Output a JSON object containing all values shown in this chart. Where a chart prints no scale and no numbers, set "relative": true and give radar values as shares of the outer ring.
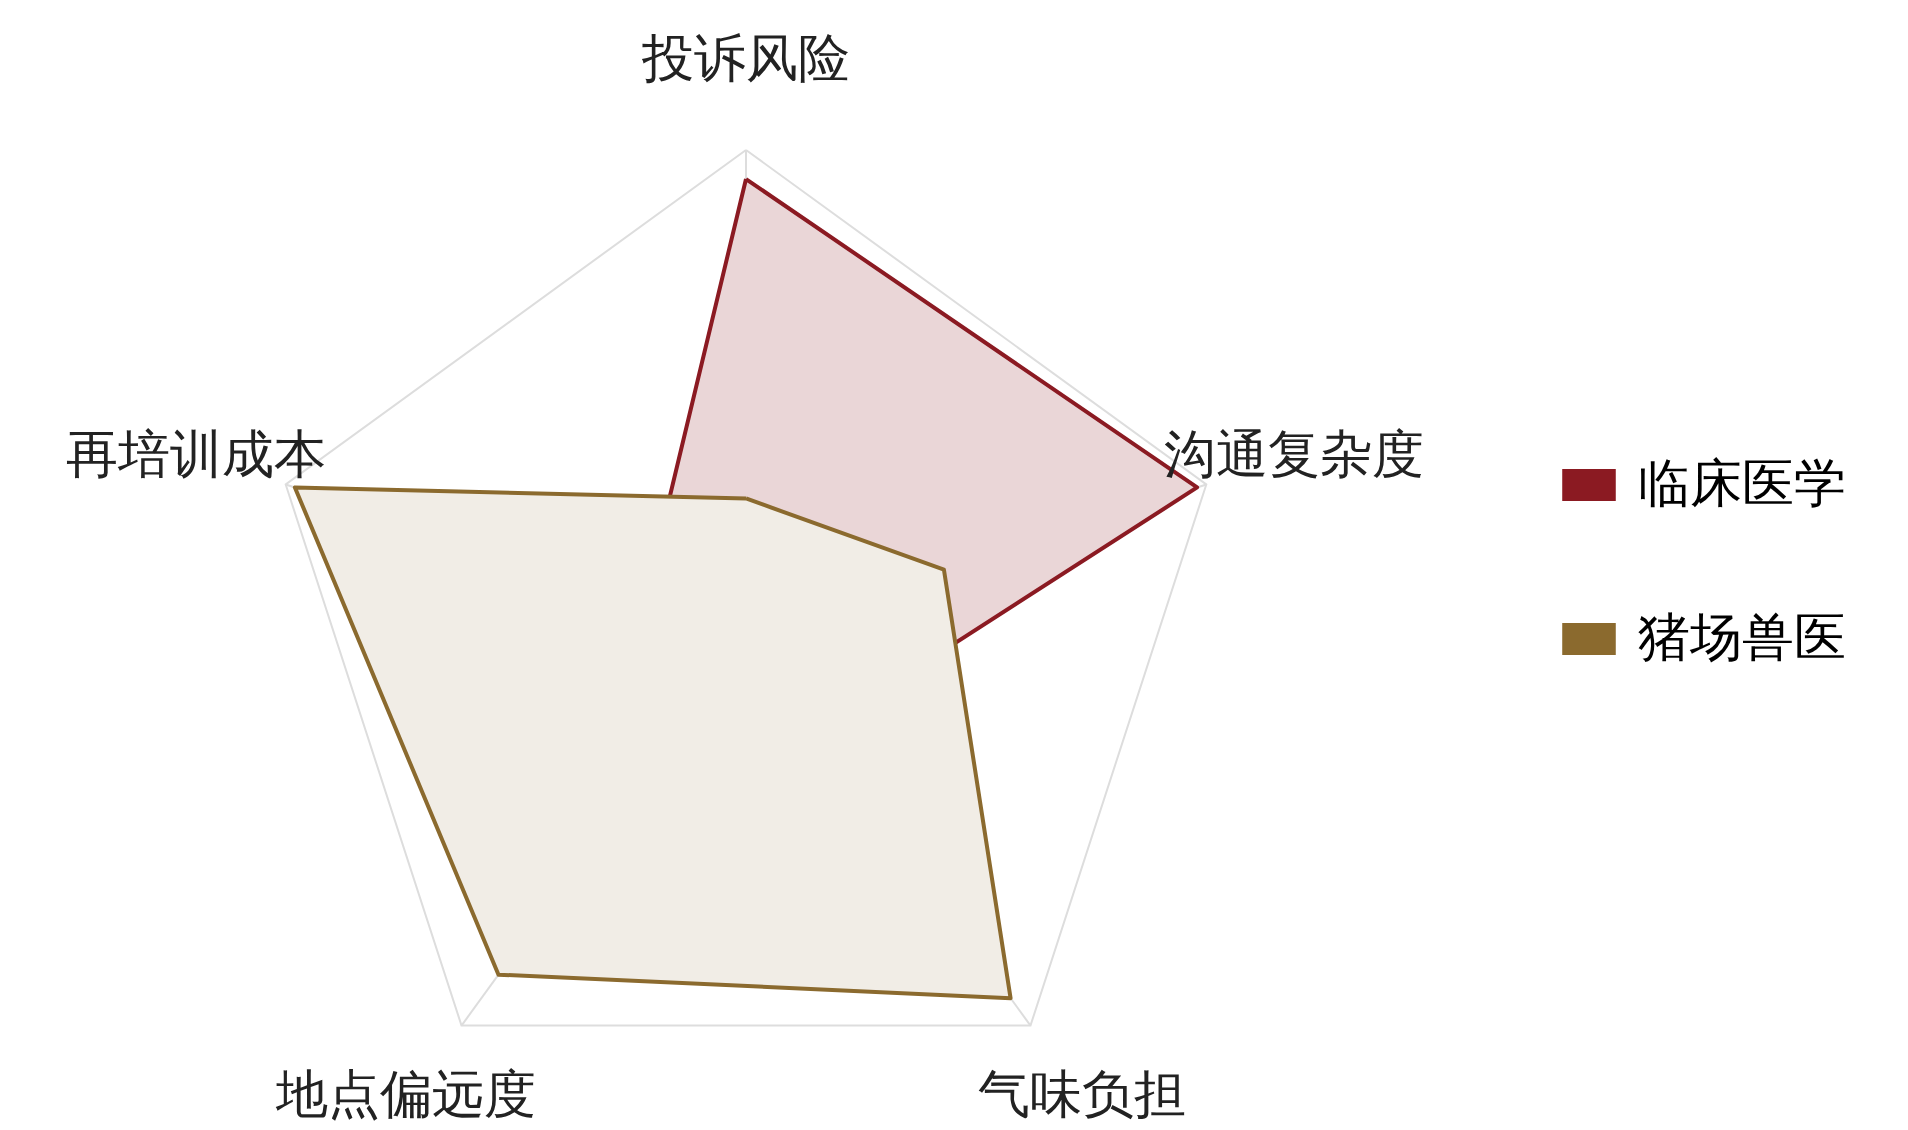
{
  "chart_data": {
    "type": "radar",
    "relative": true,
    "grid": true,
    "legend": "right",
    "categories": [
      "投诉风险",
      "沟通复杂度",
      "气味负担",
      "地点偏远度",
      "再培训成本"
    ],
    "series": [
      {
        "name": "临床医学",
        "color": "#8b1a22",
        "values": [
          0.94,
          0.98,
          0.25,
          0.2,
          0.22
        ]
      },
      {
        "name": "猪场兽医",
        "color": "#8b6a2e",
        "values": [
          0.28,
          0.43,
          0.93,
          0.87,
          0.98
        ]
      }
    ]
  }
}
